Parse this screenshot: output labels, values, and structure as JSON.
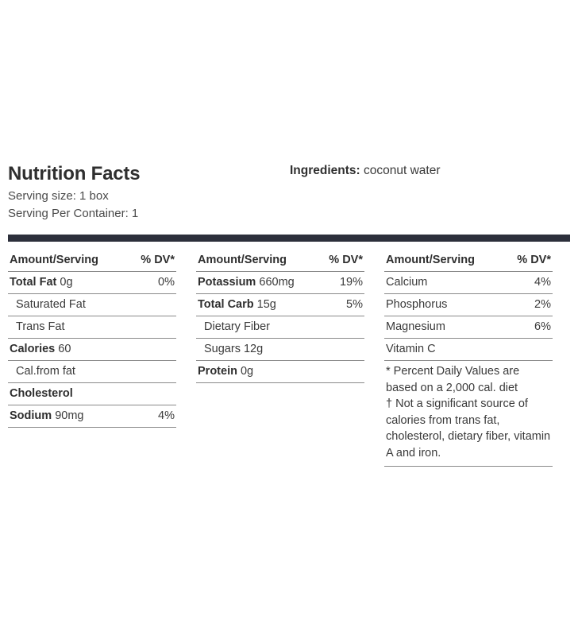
{
  "title": "Nutrition Facts",
  "serving_size": "Serving size: 1 box",
  "servings_per_container": "Serving Per Container: 1",
  "ingredients": {
    "label": "Ingredients:",
    "value": "coconut water"
  },
  "header": {
    "amount": "Amount/Serving",
    "dv": "% DV*"
  },
  "columns": [
    {
      "rows": [
        {
          "label": "Total Fat",
          "amount": "0g",
          "dv": "0%"
        },
        {
          "label": "Saturated Fat",
          "amount": "",
          "dv": ""
        },
        {
          "label": "Trans Fat",
          "amount": "",
          "dv": ""
        },
        {
          "label": "Calories",
          "amount": "60",
          "dv": ""
        },
        {
          "label": "Cal.from fat",
          "amount": "",
          "dv": ""
        },
        {
          "label": "Cholesterol",
          "amount": "",
          "dv": ""
        },
        {
          "label": "Sodium",
          "amount": "90mg",
          "dv": "4%"
        }
      ]
    },
    {
      "rows": [
        {
          "label": "Potassium",
          "amount": "660mg",
          "dv": "19%"
        },
        {
          "label": "Total Carb",
          "amount": "15g",
          "dv": "5%"
        },
        {
          "label": "Dietary Fiber",
          "amount": "",
          "dv": ""
        },
        {
          "label": "Sugars",
          "amount": "12g",
          "dv": ""
        },
        {
          "label": "Protein",
          "amount": "0g",
          "dv": ""
        }
      ]
    },
    {
      "rows": [
        {
          "label": "Calcium",
          "amount": "",
          "dv": "4%"
        },
        {
          "label": "Phosphorus",
          "amount": "",
          "dv": "2%"
        },
        {
          "label": "Magnesium",
          "amount": "",
          "dv": "6%"
        },
        {
          "label": "Vitamin C",
          "amount": "",
          "dv": ""
        }
      ]
    }
  ],
  "footnote": {
    "line1": "* Percent Daily Values are based on a 2,000 cal. diet",
    "line2": "† Not a significant source of calories from trans fat, cholesterol, dietary fiber, vitamin A and iron."
  }
}
